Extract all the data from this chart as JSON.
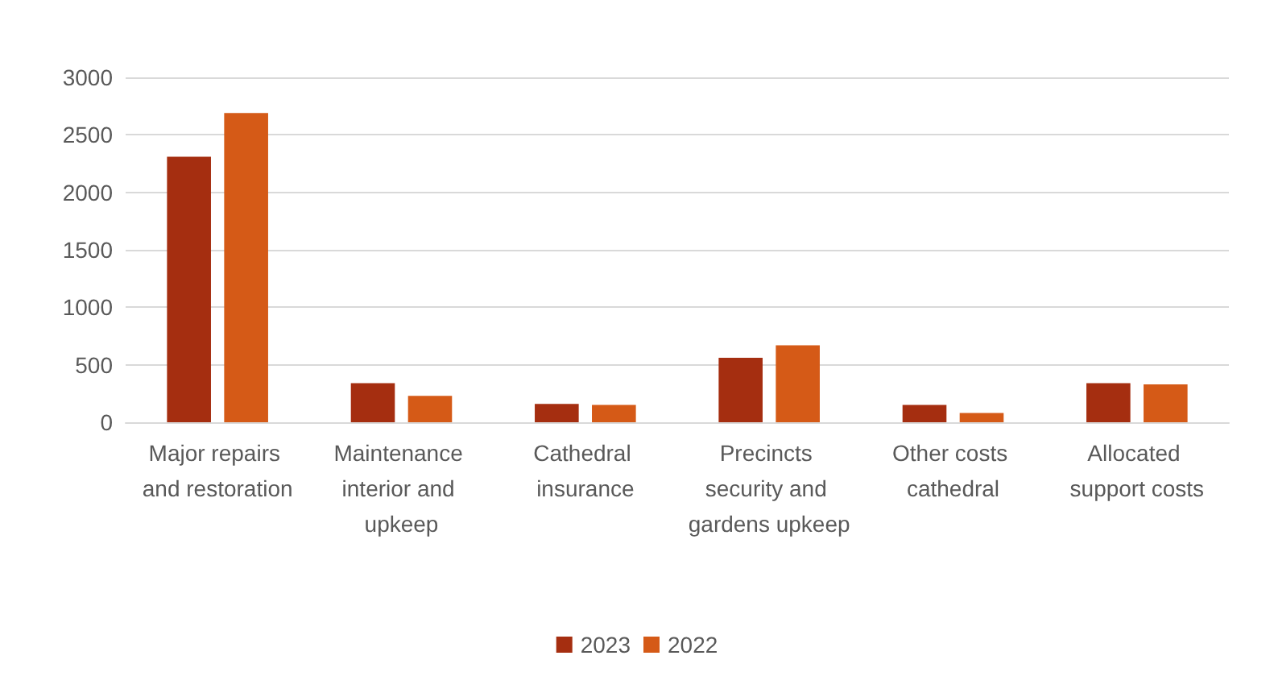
{
  "chart_data": {
    "type": "bar",
    "categories": [
      "Major repairs and restoration",
      "Maintenance interior and upkeep",
      "Cathedral insurance",
      "Precincts security and gardens upkeep",
      "Other costs cathedral",
      "Allocated support costs"
    ],
    "series": [
      {
        "name": "2023",
        "color": "#a52e10",
        "values": [
          2310,
          340,
          160,
          560,
          150,
          340
        ]
      },
      {
        "name": "2022",
        "color": "#d55a17",
        "values": [
          2690,
          230,
          150,
          670,
          80,
          330
        ]
      }
    ],
    "ylim": [
      0,
      3000
    ],
    "yticks": [
      0,
      500,
      1000,
      1500,
      2000,
      2500,
      3000
    ],
    "grid": "y",
    "legend": "bottom"
  }
}
